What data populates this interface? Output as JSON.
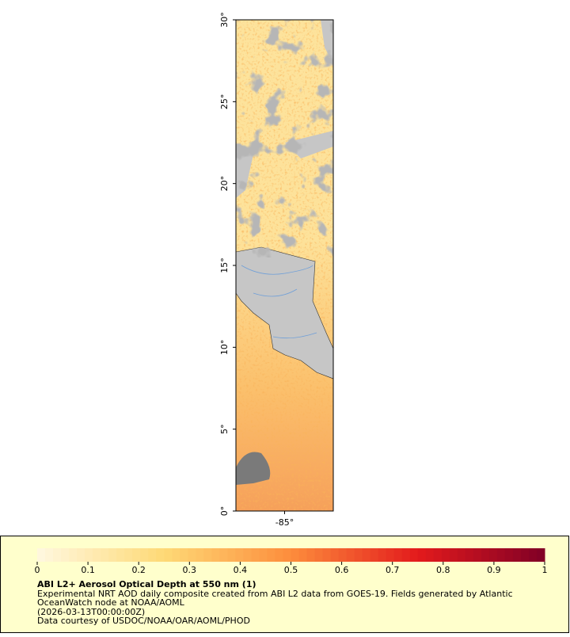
{
  "chart_data": {
    "type": "map",
    "xlim": [
      -88,
      -82
    ],
    "ylim": [
      0,
      30
    ],
    "xticks": [
      {
        "value": -85,
        "label": "-85°"
      }
    ],
    "yticks": [
      {
        "value": 0,
        "label": "0°"
      },
      {
        "value": 5,
        "label": "5°"
      },
      {
        "value": 10,
        "label": "10°"
      },
      {
        "value": 15,
        "label": "15°"
      },
      {
        "value": 20,
        "label": "20°"
      },
      {
        "value": 25,
        "label": "25°"
      },
      {
        "value": 30,
        "label": "30°"
      }
    ],
    "colorbar": {
      "zlim": [
        0,
        1
      ],
      "ticks": [
        0,
        0.1,
        0.2,
        0.3,
        0.4,
        0.5,
        0.6,
        0.7,
        0.8,
        0.9,
        1
      ],
      "colors": [
        "#fff8e0",
        "#fed976",
        "#fd8d3c",
        "#e31a1c",
        "#800026"
      ]
    },
    "legend": {
      "title": "ABI L2+ Aerosol Optical Depth at 550 nm (1)",
      "lines": [
        "Experimental NRT AOD daily composite created from ABI L2 data from GOES-19. Fields generated by Atlantic",
        "OceanWatch node at NOAA/AOML",
        "(2026-03-13T00:00:00Z)",
        "Data courtesy of USDOC/NOAA/OAR/AOML/PHOD"
      ]
    }
  }
}
